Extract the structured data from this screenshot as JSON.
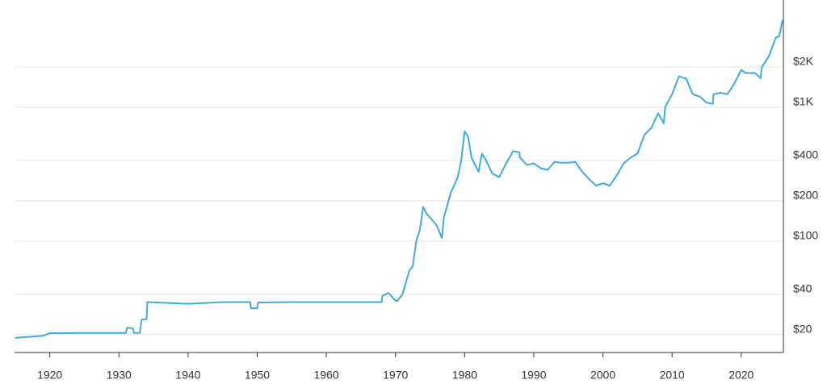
{
  "chart_data": {
    "type": "line",
    "log_y": true,
    "grid": true,
    "color": "#3eabe3",
    "x": [
      1915,
      1919,
      1920,
      1925,
      1931,
      1931.2,
      1932,
      1932.2,
      1933,
      1933.3,
      1934,
      1934.1,
      1940,
      1945,
      1949,
      1949.1,
      1950,
      1950.1,
      1955,
      1960,
      1968,
      1968.1,
      1969,
      1970,
      1970.3,
      1971,
      1972,
      1972.5,
      1973,
      1973.5,
      1974,
      1974.5,
      1975,
      1976,
      1976.7,
      1977,
      1978,
      1979,
      1979.5,
      1980,
      1980.5,
      1981,
      1982,
      1982.5,
      1983,
      1984,
      1985,
      1986,
      1987,
      1987.9,
      1988,
      1989,
      1990,
      1991,
      1992,
      1993,
      1994,
      1995,
      1996,
      1997,
      1998,
      1999,
      2000,
      2001,
      2002,
      2003,
      2004,
      2005,
      2006,
      2007,
      2008,
      2008.8,
      2009,
      2010,
      2011,
      2011.7,
      2012,
      2013,
      2014,
      2015,
      2015.9,
      2016,
      2017,
      2018,
      2019,
      2020,
      2020.6,
      2021,
      2022,
      2022.8,
      2023,
      2024,
      2025,
      2025.5,
      2026
    ],
    "values": [
      18.9,
      19.6,
      20.5,
      20.6,
      20.6,
      22.5,
      22.3,
      20.6,
      20.6,
      26,
      26,
      35,
      34,
      35,
      35,
      31.5,
      31.5,
      34.7,
      35,
      35,
      35,
      39,
      41,
      35.8,
      35.8,
      40,
      60,
      65,
      100,
      120,
      180,
      160,
      150,
      130,
      105,
      150,
      230,
      300,
      400,
      660,
      600,
      420,
      330,
      450,
      410,
      320,
      300,
      380,
      470,
      460,
      420,
      370,
      380,
      350,
      340,
      390,
      385,
      385,
      390,
      330,
      290,
      260,
      270,
      260,
      310,
      380,
      420,
      450,
      620,
      700,
      900,
      760,
      1000,
      1250,
      1700,
      1650,
      1650,
      1250,
      1200,
      1080,
      1060,
      1250,
      1280,
      1250,
      1500,
      1900,
      1800,
      1800,
      1800,
      1650,
      2000,
      2400,
      3300,
      3400,
      4500
    ],
    "xlim": [
      1914.9,
      2026.1
    ],
    "ylim": [
      14.7,
      6320
    ],
    "xticks": [
      1920,
      1930,
      1940,
      1950,
      1960,
      1970,
      1980,
      1990,
      2000,
      2010,
      2020
    ],
    "yticks": [
      {
        "value": 20,
        "label": "$20"
      },
      {
        "value": 40,
        "label": "$40"
      },
      {
        "value": 100,
        "label": "$100"
      },
      {
        "value": 200,
        "label": "$200"
      },
      {
        "value": 400,
        "label": "$400"
      },
      {
        "value": 1000,
        "label": "$1K"
      },
      {
        "value": 2000,
        "label": "$2K"
      }
    ]
  }
}
